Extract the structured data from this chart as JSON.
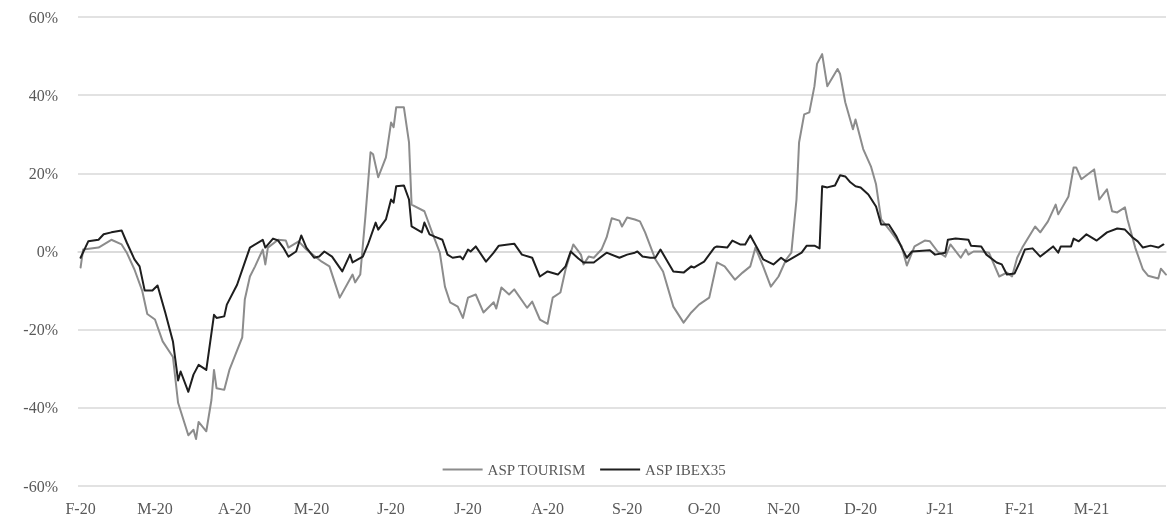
{
  "chart_data": {
    "type": "line",
    "xlim": [
      "2020-01-31",
      "2021-03-30"
    ],
    "xticks": [
      {
        "value": "2020-02-01",
        "label": "F-20"
      },
      {
        "value": "2020-03-01",
        "label": "M-20"
      },
      {
        "value": "2020-04-01",
        "label": "A-20"
      },
      {
        "value": "2020-05-01",
        "label": "M-20"
      },
      {
        "value": "2020-06-01",
        "label": "J-20"
      },
      {
        "value": "2020-07-01",
        "label": "J-20"
      },
      {
        "value": "2020-08-01",
        "label": "A-20"
      },
      {
        "value": "2020-09-01",
        "label": "S-20"
      },
      {
        "value": "2020-10-01",
        "label": "O-20"
      },
      {
        "value": "2020-11-01",
        "label": "N-20"
      },
      {
        "value": "2020-12-01",
        "label": "D-20"
      },
      {
        "value": "2021-01-01",
        "label": "J-21"
      },
      {
        "value": "2021-02-01",
        "label": "F-21"
      },
      {
        "value": "2021-03-01",
        "label": "M-21"
      }
    ],
    "ylim": [
      -60,
      60
    ],
    "yticks": [
      {
        "value": -60,
        "label": "-60%"
      },
      {
        "value": -40,
        "label": "-40%"
      },
      {
        "value": -20,
        "label": "-20%"
      },
      {
        "value": 0,
        "label": "0%"
      },
      {
        "value": 20,
        "label": "20%"
      },
      {
        "value": 40,
        "label": "40%"
      },
      {
        "value": 60,
        "label": "60%"
      }
    ],
    "grid": "y",
    "legend": "bottom",
    "marker": "none",
    "line_style": "solid",
    "series": [
      {
        "name": "ASP TOURISM",
        "color": "#8c8c8c",
        "x": [
          "2020-02-01",
          "2020-02-02",
          "2020-02-08",
          "2020-02-13",
          "2020-02-17",
          "2020-02-19",
          "2020-02-22",
          "2020-02-25",
          "2020-02-27",
          "2020-03-01",
          "2020-03-04",
          "2020-03-08",
          "2020-03-10",
          "2020-03-14",
          "2020-03-16",
          "2020-03-17",
          "2020-03-18",
          "2020-03-21",
          "2020-03-23",
          "2020-03-24",
          "2020-03-25",
          "2020-03-28",
          "2020-03-30",
          "2020-04-04",
          "2020-04-05",
          "2020-04-07",
          "2020-04-09",
          "2020-04-12",
          "2020-04-13",
          "2020-04-14",
          "2020-04-18",
          "2020-04-21",
          "2020-04-22",
          "2020-04-26",
          "2020-04-29",
          "2020-05-05",
          "2020-05-08",
          "2020-05-12",
          "2020-05-17",
          "2020-05-18",
          "2020-05-20",
          "2020-05-22",
          "2020-05-24",
          "2020-05-25",
          "2020-05-27",
          "2020-05-30",
          "2020-06-01",
          "2020-06-02",
          "2020-06-03",
          "2020-06-06",
          "2020-06-08",
          "2020-06-09",
          "2020-06-14",
          "2020-06-17",
          "2020-06-20",
          "2020-06-22",
          "2020-06-24",
          "2020-06-27",
          "2020-06-29",
          "2020-07-01",
          "2020-07-04",
          "2020-07-07",
          "2020-07-11",
          "2020-07-12",
          "2020-07-14",
          "2020-07-17",
          "2020-07-19",
          "2020-07-24",
          "2020-07-26",
          "2020-07-29",
          "2020-08-01",
          "2020-08-03",
          "2020-08-06",
          "2020-08-08",
          "2020-08-11",
          "2020-08-14",
          "2020-08-15",
          "2020-08-17",
          "2020-08-19",
          "2020-08-22",
          "2020-08-24",
          "2020-08-26",
          "2020-08-29",
          "2020-08-30",
          "2020-09-01",
          "2020-09-04",
          "2020-09-06",
          "2020-09-08",
          "2020-09-12",
          "2020-09-15",
          "2020-09-19",
          "2020-09-23",
          "2020-09-26",
          "2020-09-29",
          "2020-10-03",
          "2020-10-06",
          "2020-10-09",
          "2020-10-13",
          "2020-10-16",
          "2020-10-19",
          "2020-10-21",
          "2020-10-24",
          "2020-10-27",
          "2020-10-30",
          "2020-11-02",
          "2020-11-04",
          "2020-11-06",
          "2020-11-07",
          "2020-11-09",
          "2020-11-11",
          "2020-11-13",
          "2020-11-14",
          "2020-11-16",
          "2020-11-18",
          "2020-11-22",
          "2020-11-23",
          "2020-11-25",
          "2020-11-28",
          "2020-11-29",
          "2020-12-02",
          "2020-12-05",
          "2020-12-07",
          "2020-12-09",
          "2020-12-13",
          "2020-12-17",
          "2020-12-19",
          "2020-12-22",
          "2020-12-26",
          "2020-12-28",
          "2020-12-31",
          "2021-01-03",
          "2021-01-05",
          "2021-01-09",
          "2021-01-11",
          "2021-01-12",
          "2021-01-14",
          "2021-01-17",
          "2021-01-20",
          "2021-01-24",
          "2021-01-27",
          "2021-01-29",
          "2021-01-31",
          "2021-02-02",
          "2021-02-07",
          "2021-02-09",
          "2021-02-12",
          "2021-02-15",
          "2021-02-16",
          "2021-02-20",
          "2021-02-22",
          "2021-02-23",
          "2021-02-25",
          "2021-03-02",
          "2021-03-04",
          "2021-03-07",
          "2021-03-09",
          "2021-03-11",
          "2021-03-14",
          "2021-03-15",
          "2021-03-18",
          "2021-03-21",
          "2021-03-23",
          "2021-03-27",
          "2021-03-28",
          "2021-03-30"
        ],
        "values": [
          -4.1,
          0.5,
          1,
          3,
          1.8,
          -0.3,
          -4.6,
          -10,
          -16,
          -17.4,
          -23,
          -27,
          -38.7,
          -47,
          -45.6,
          -48,
          -43.6,
          -46,
          -38,
          -30.3,
          -35,
          -35.4,
          -30.3,
          -22,
          -12.3,
          -6.4,
          -3.8,
          0.5,
          -3.3,
          1,
          3,
          2.8,
          1,
          2.6,
          0.5,
          -2.6,
          -3.8,
          -11.8,
          -5.9,
          -7.9,
          -5.9,
          9,
          25.4,
          24.9,
          19,
          24.1,
          33,
          31.8,
          36.9,
          36.9,
          27.9,
          12,
          10.3,
          4.9,
          -0.3,
          -9,
          -13,
          -14.1,
          -17,
          -11.8,
          -11,
          -15.6,
          -13,
          -14.6,
          -9.2,
          -11,
          -9.7,
          -14.4,
          -12.8,
          -17.4,
          -18.5,
          -11.8,
          -10.5,
          -4.6,
          1.8,
          -0.8,
          -3.3,
          -1.3,
          -1.6,
          0.5,
          3.6,
          8.5,
          7.9,
          6.4,
          8.7,
          8.2,
          7.7,
          4.9,
          -2,
          -5.1,
          -14.1,
          -18.2,
          -15.6,
          -13.6,
          -11.8,
          -2.8,
          -3.8,
          -7.2,
          -5.4,
          -3.8,
          1,
          -3.8,
          -9,
          -6.4,
          -2,
          -0.3,
          13.3,
          27.9,
          35.1,
          35.6,
          42.3,
          48,
          50.5,
          42.3,
          46.7,
          45.4,
          38.2,
          31.3,
          33.8,
          26.2,
          21.8,
          17.2,
          8.2,
          4.9,
          1.3,
          -3.6,
          1.3,
          2.8,
          2.6,
          0,
          -1.3,
          1.8,
          -1.6,
          0.5,
          -0.8,
          0,
          0,
          -0.3,
          -6.4,
          -5.4,
          -6.4,
          -1.6,
          1,
          6.4,
          4.9,
          7.7,
          12,
          9.5,
          14.1,
          21.5,
          21.5,
          18.5,
          21,
          13.3,
          15.9,
          10.3,
          10,
          11.3,
          8.2,
          1,
          -4.6,
          -6.2,
          -6.9,
          -4.4,
          -5.9
        ]
      },
      {
        "name": "ASP IBEX35",
        "color": "#1e1e1e",
        "x": [
          "2020-02-01",
          "2020-02-04",
          "2020-02-08",
          "2020-02-10",
          "2020-02-13",
          "2020-02-17",
          "2020-02-19",
          "2020-02-22",
          "2020-02-24",
          "2020-02-26",
          "2020-02-29",
          "2020-03-02",
          "2020-03-05",
          "2020-03-08",
          "2020-03-10",
          "2020-03-11",
          "2020-03-14",
          "2020-03-16",
          "2020-03-18",
          "2020-03-21",
          "2020-03-24",
          "2020-03-25",
          "2020-03-28",
          "2020-03-29",
          "2020-04-02",
          "2020-04-05",
          "2020-04-07",
          "2020-04-12",
          "2020-04-13",
          "2020-04-16",
          "2020-04-18",
          "2020-04-20",
          "2020-04-22",
          "2020-04-25",
          "2020-04-27",
          "2020-04-29",
          "2020-05-02",
          "2020-05-04",
          "2020-05-06",
          "2020-05-09",
          "2020-05-13",
          "2020-05-16",
          "2020-05-17",
          "2020-05-21",
          "2020-05-23",
          "2020-05-26",
          "2020-05-27",
          "2020-05-30",
          "2020-06-01",
          "2020-06-02",
          "2020-06-03",
          "2020-06-06",
          "2020-06-08",
          "2020-06-09",
          "2020-06-13",
          "2020-06-14",
          "2020-06-16",
          "2020-06-18",
          "2020-06-21",
          "2020-06-23",
          "2020-06-25",
          "2020-06-28",
          "2020-06-29",
          "2020-07-01",
          "2020-07-02",
          "2020-07-04",
          "2020-07-08",
          "2020-07-11",
          "2020-07-13",
          "2020-07-19",
          "2020-07-22",
          "2020-07-26",
          "2020-07-29",
          "2020-08-01",
          "2020-08-05",
          "2020-08-08",
          "2020-08-10",
          "2020-08-13",
          "2020-08-15",
          "2020-08-19",
          "2020-08-24",
          "2020-08-29",
          "2020-09-01",
          "2020-09-04",
          "2020-09-05",
          "2020-09-07",
          "2020-09-10",
          "2020-09-12",
          "2020-09-14",
          "2020-09-19",
          "2020-09-23",
          "2020-09-26",
          "2020-09-27",
          "2020-10-01",
          "2020-10-05",
          "2020-10-06",
          "2020-10-10",
          "2020-10-12",
          "2020-10-15",
          "2020-10-17",
          "2020-10-19",
          "2020-10-22",
          "2020-10-24",
          "2020-10-28",
          "2020-10-31",
          "2020-11-02",
          "2020-11-08",
          "2020-11-10",
          "2020-11-13",
          "2020-11-15",
          "2020-11-16",
          "2020-11-18",
          "2020-11-21",
          "2020-11-23",
          "2020-11-25",
          "2020-11-27",
          "2020-11-29",
          "2020-12-01",
          "2020-12-04",
          "2020-12-07",
          "2020-12-09",
          "2020-12-12",
          "2020-12-15",
          "2020-12-17",
          "2020-12-19",
          "2020-12-21",
          "2020-12-28",
          "2020-12-30",
          "2021-01-03",
          "2021-01-04",
          "2021-01-07",
          "2021-01-12",
          "2021-01-13",
          "2021-01-17",
          "2021-01-19",
          "2021-01-23",
          "2021-01-25",
          "2021-01-26",
          "2021-01-27",
          "2021-01-30",
          "2021-02-01",
          "2021-02-03",
          "2021-02-06",
          "2021-02-09",
          "2021-02-14",
          "2021-02-16",
          "2021-02-17",
          "2021-02-21",
          "2021-02-22",
          "2021-02-24",
          "2021-02-27",
          "2021-03-03",
          "2021-03-07",
          "2021-03-11",
          "2021-03-14",
          "2021-03-17",
          "2021-03-19",
          "2021-03-21",
          "2021-03-24",
          "2021-03-27",
          "2021-03-29"
        ],
        "values": [
          -1.6,
          2.6,
          3,
          4.4,
          4.9,
          5.4,
          2.3,
          -2,
          -3.8,
          -10,
          -10,
          -8.7,
          -15.6,
          -23,
          -33,
          -30.7,
          -35.9,
          -31.5,
          -29,
          -30.3,
          -16.2,
          -17,
          -16.6,
          -13.6,
          -8.5,
          -2.8,
          1,
          3,
          1,
          3.3,
          2.8,
          1,
          -1.3,
          0,
          4.1,
          1,
          -1.6,
          -1.3,
          0,
          -1.3,
          -5.1,
          -0.8,
          -2.8,
          -1.3,
          1.8,
          7.4,
          5.6,
          8.2,
          13.3,
          12.5,
          16.7,
          16.9,
          13.3,
          6.4,
          4.9,
          7.4,
          4.4,
          3.8,
          3,
          -0.8,
          -1.6,
          -1.3,
          -2,
          0.5,
          0,
          1.3,
          -2.6,
          -0.3,
          1.5,
          2,
          -0.8,
          -1.6,
          -6.4,
          -5.1,
          -5.9,
          -3.8,
          0,
          -1.8,
          -2.8,
          -2.8,
          -0.3,
          -1.6,
          -0.8,
          -0.3,
          0,
          -1.3,
          -1.6,
          -1.6,
          0.5,
          -5.1,
          -5.4,
          -3.8,
          -4.1,
          -2.6,
          1,
          1.3,
          1,
          2.8,
          1.8,
          1.8,
          4.1,
          0.5,
          -2,
          -3.3,
          -1.6,
          -2.6,
          -0.3,
          1.5,
          1.5,
          0.8,
          16.7,
          16.4,
          16.9,
          19.5,
          19.2,
          17.7,
          16.7,
          16.4,
          14.6,
          11.5,
          6.9,
          6.9,
          3.8,
          1,
          -1.6,
          0,
          0.3,
          -0.8,
          -0.3,
          3,
          3.3,
          3,
          1.5,
          1.3,
          -0.8,
          -2.8,
          -3.3,
          -4.6,
          -5.9,
          -5.6,
          -2.8,
          0.5,
          0.8,
          -1.3,
          1.3,
          -0.3,
          1.3,
          1.3,
          3.3,
          2.6,
          4.4,
          2.8,
          4.9,
          5.9,
          5.6,
          3.6,
          2.6,
          1,
          1.5,
          1,
          1.8
        ]
      }
    ]
  }
}
